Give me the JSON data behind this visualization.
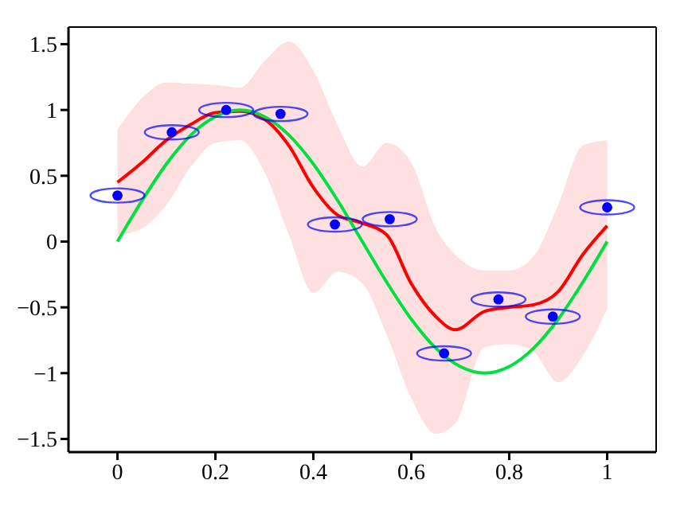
{
  "chart_data": {
    "type": "line",
    "xlim": [
      -0.1,
      1.1
    ],
    "ylim": [
      -1.6,
      1.63
    ],
    "xticks": [
      0,
      0.2,
      0.4,
      0.6,
      0.8,
      1
    ],
    "yticks": [
      {
        "value": -1.5,
        "label": "−1.5"
      },
      {
        "value": -1,
        "label": "−1"
      },
      {
        "value": -0.5,
        "label": "−0.5"
      },
      0,
      0.5,
      1,
      1.5
    ],
    "grid": false,
    "legend": false,
    "marker": "none",
    "line_style": "solid",
    "series": [
      {
        "type": "line",
        "color": "#ff0000",
        "x": [
          0,
          0.05,
          0.1,
          0.15,
          0.2,
          0.25,
          0.3,
          0.35,
          0.4,
          0.45,
          0.5,
          0.55,
          0.6,
          0.65,
          0.69,
          0.75,
          0.8,
          0.85,
          0.9,
          0.95,
          1
        ],
        "values": [
          0.45,
          0.6,
          0.77,
          0.89,
          0.98,
          0.99,
          0.93,
          0.73,
          0.41,
          0.2,
          0.14,
          0.05,
          -0.32,
          -0.57,
          -0.67,
          -0.53,
          -0.5,
          -0.48,
          -0.38,
          -0.1,
          0.12
        ],
        "lower": [
          0.05,
          0.1,
          0.28,
          0.57,
          0.75,
          0.77,
          0.53,
          0.05,
          -0.39,
          -0.23,
          -0.32,
          -0.71,
          -1.19,
          -1.46,
          -1.38,
          -0.8,
          -0.78,
          -0.84,
          -1.07,
          -0.87,
          -0.51
        ],
        "upper": [
          0.85,
          1.09,
          1.21,
          1.2,
          1.19,
          1.17,
          1.37,
          1.52,
          1.3,
          0.88,
          0.57,
          0.75,
          0.6,
          0.1,
          -0.1,
          -0.22,
          -0.22,
          -0.11,
          0.28,
          0.73,
          0.77
        ]
      },
      {
        "type": "line",
        "color": "#00e040",
        "x": [
          0,
          0.05,
          0.1,
          0.15,
          0.2,
          0.25,
          0.3,
          0.35,
          0.4,
          0.45,
          0.5,
          0.55,
          0.6,
          0.65,
          0.7,
          0.75,
          0.8,
          0.85,
          0.9,
          0.95,
          1
        ],
        "values": [
          0,
          0.31,
          0.59,
          0.81,
          0.95,
          1,
          0.95,
          0.81,
          0.59,
          0.31,
          0,
          -0.31,
          -0.59,
          -0.81,
          -0.95,
          -1,
          -0.95,
          -0.81,
          -0.59,
          -0.31,
          0
        ]
      },
      {
        "type": "scatter",
        "color": "#0000ff",
        "marker": "circle",
        "x": [
          0,
          0.111,
          0.222,
          0.333,
          0.444,
          0.556,
          0.667,
          0.778,
          0.889,
          1
        ],
        "values": [
          0.35,
          0.83,
          1.0,
          0.97,
          0.13,
          0.17,
          -0.85,
          -0.44,
          -0.57,
          0.26
        ]
      }
    ]
  }
}
